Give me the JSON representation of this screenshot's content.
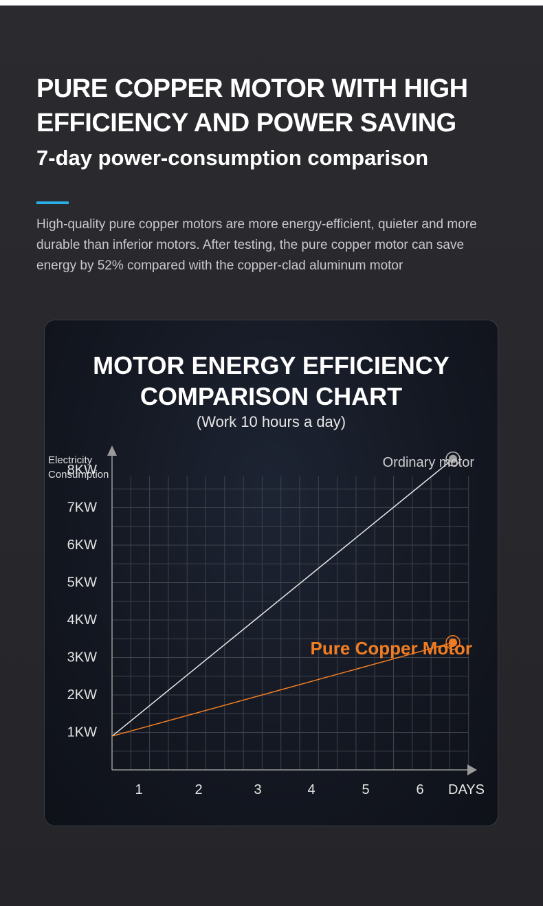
{
  "header": {
    "title": "PURE COPPER MOTOR WITH HIGH EFFICIENCY AND POWER SAVING",
    "subtitle": "7-day power-consumption comparison",
    "description": "High-quality pure copper motors are more energy-efficient, quieter and more durable than inferior motors. After testing, the pure copper motor can save energy by 52% compared with the copper-clad aluminum motor"
  },
  "colors": {
    "background": "#29292d",
    "accent": "#29aee6",
    "ordinary": "#e8e8e8",
    "copper": "#f07d23"
  },
  "chart_data": {
    "type": "line",
    "title": "MOTOR ENERGY EFFICIENCY COMPARISON CHART",
    "subtitle": "(Work 10 hours a day)",
    "ylabel": "Electricity Consumption",
    "xlabel": "DAYS",
    "x_ticks": [
      "1",
      "2",
      "3",
      "4",
      "5",
      "6"
    ],
    "y_ticks": [
      "1KW",
      "2KW",
      "3KW",
      "4KW",
      "5KW",
      "6KW",
      "7KW",
      "8KW"
    ],
    "grid": true,
    "series": [
      {
        "name": "Ordinary motor",
        "x": [
          0,
          6.2
        ],
        "y": [
          0.9,
          8.3
        ]
      },
      {
        "name": "Pure Copper Motor",
        "x": [
          0,
          6.2
        ],
        "y": [
          0.9,
          3.4
        ]
      }
    ]
  }
}
